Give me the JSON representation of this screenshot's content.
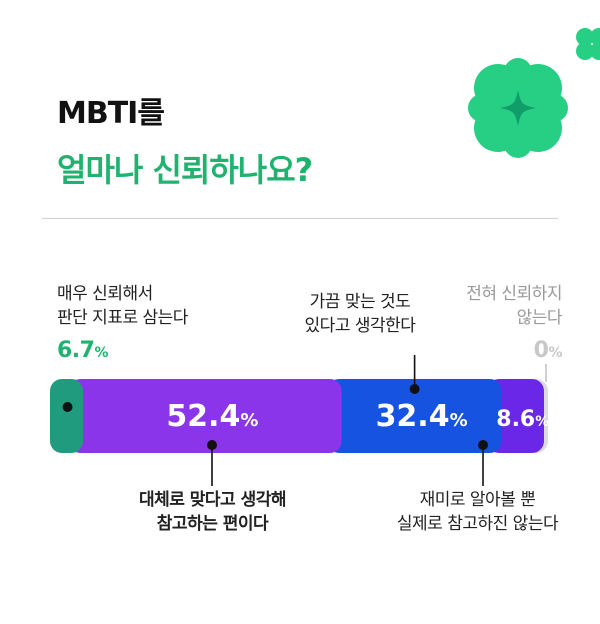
{
  "header": {
    "title_line1": "MBTI를",
    "title_line2": "얼마나 신뢰하나요?"
  },
  "colors": {
    "accent_green": "#1fb36f",
    "clover_green": "#27cf84"
  },
  "icons": [
    "clover-icon",
    "small-clover-icon"
  ],
  "chart_data": {
    "type": "bar",
    "orientation": "horizontal-stacked",
    "unit": "%",
    "series": [
      {
        "label_line1": "매우 신뢰해서",
        "label_line2": "판단 지표로 삼는다",
        "value": 6.7,
        "value_text": "6.7",
        "color": "#219b7e"
      },
      {
        "label_line1": "대체로 맞다고 생각해",
        "label_line2": "참고하는 편이다",
        "value": 52.4,
        "value_text": "52.4",
        "color": "#8a35ea"
      },
      {
        "label_line1": "가끔 맞는 것도",
        "label_line2": "있다고 생각한다",
        "value": 32.4,
        "value_text": "32.4",
        "color": "#1553e0"
      },
      {
        "label_line1": "재미로 알아볼 뿐",
        "label_line2": "실제로 참고하진 않는다",
        "value": 8.6,
        "value_text": "8.6",
        "color": "#6a27e8"
      },
      {
        "label_line1": "전혀 신뢰하지",
        "label_line2": "않는다",
        "value": 0,
        "value_text": "0",
        "color": "#c8c8c8"
      }
    ]
  }
}
